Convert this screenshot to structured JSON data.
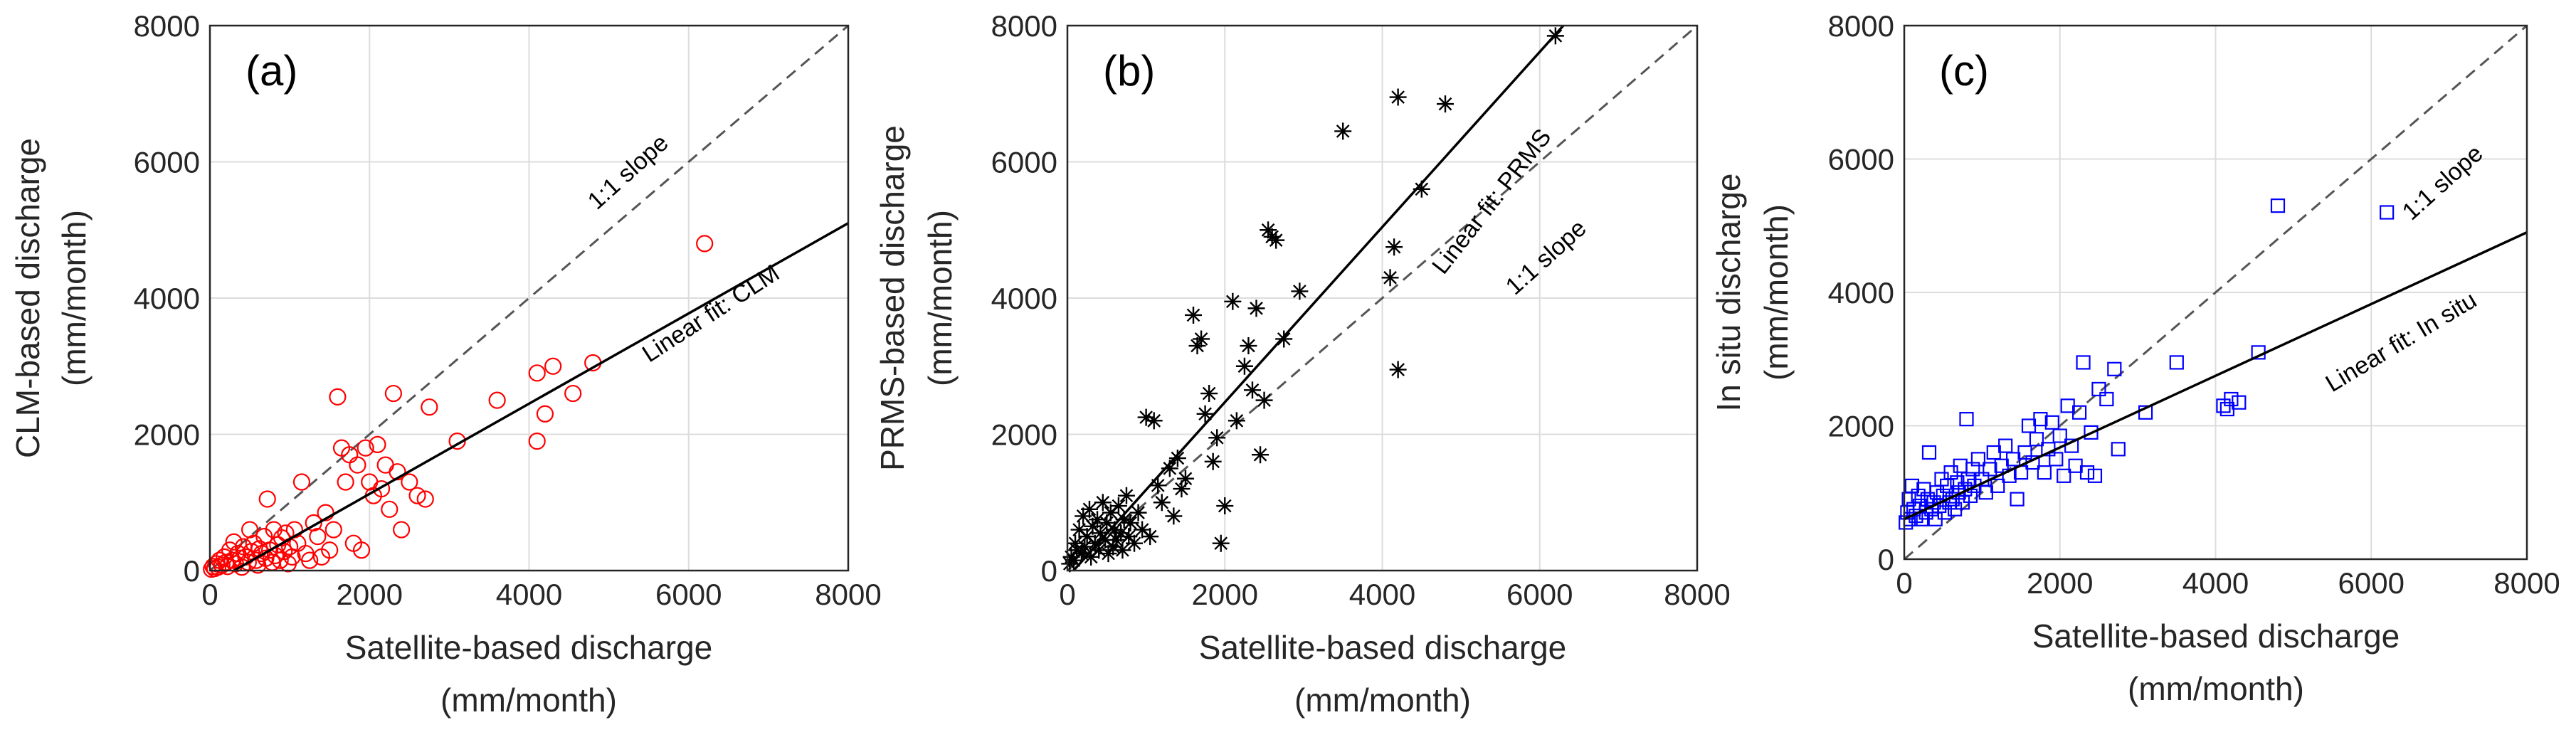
{
  "chart_data": [
    {
      "type": "scatter",
      "panel": "(a)",
      "xlabel": [
        "Satellite-based discharge",
        "(mm/month)"
      ],
      "ylabel": [
        "CLM-based discharge",
        "(mm/month)"
      ],
      "xlim": [
        0,
        8000
      ],
      "ylim": [
        0,
        8000
      ],
      "xticks": [
        "0",
        "2000",
        "4000",
        "6000",
        "8000"
      ],
      "yticks": [
        "0",
        "2000",
        "4000",
        "6000",
        "8000"
      ],
      "grid": true,
      "marker": "circle",
      "color": "#ff0000",
      "fit_label": "Linear fit: CLM",
      "one_to_one_label": "1:1 slope",
      "fit": {
        "x": [
          0,
          8000
        ],
        "y": [
          -200,
          5100
        ]
      },
      "points": [
        [
          20,
          20
        ],
        [
          40,
          60
        ],
        [
          60,
          30
        ],
        [
          80,
          100
        ],
        [
          100,
          50
        ],
        [
          120,
          150
        ],
        [
          150,
          80
        ],
        [
          180,
          200
        ],
        [
          200,
          120
        ],
        [
          220,
          60
        ],
        [
          250,
          300
        ],
        [
          280,
          150
        ],
        [
          300,
          420
        ],
        [
          320,
          100
        ],
        [
          350,
          250
        ],
        [
          380,
          180
        ],
        [
          400,
          50
        ],
        [
          420,
          350
        ],
        [
          450,
          200
        ],
        [
          480,
          120
        ],
        [
          500,
          600
        ],
        [
          520,
          280
        ],
        [
          550,
          400
        ],
        [
          580,
          150
        ],
        [
          600,
          80
        ],
        [
          620,
          320
        ],
        [
          650,
          250
        ],
        [
          680,
          500
        ],
        [
          700,
          180
        ],
        [
          720,
          1050
        ],
        [
          750,
          300
        ],
        [
          780,
          120
        ],
        [
          800,
          600
        ],
        [
          820,
          220
        ],
        [
          850,
          380
        ],
        [
          880,
          150
        ],
        [
          900,
          480
        ],
        [
          930,
          280
        ],
        [
          950,
          550
        ],
        [
          980,
          100
        ],
        [
          1000,
          350
        ],
        [
          1030,
          200
        ],
        [
          1060,
          600
        ],
        [
          1100,
          400
        ],
        [
          1150,
          1300
        ],
        [
          1200,
          250
        ],
        [
          1250,
          150
        ],
        [
          1300,
          700
        ],
        [
          1350,
          500
        ],
        [
          1400,
          200
        ],
        [
          1450,
          850
        ],
        [
          1500,
          300
        ],
        [
          1550,
          600
        ],
        [
          1600,
          2550
        ],
        [
          1650,
          1800
        ],
        [
          1700,
          1300
        ],
        [
          1750,
          1700
        ],
        [
          1800,
          400
        ],
        [
          1850,
          1550
        ],
        [
          1900,
          300
        ],
        [
          1950,
          1800
        ],
        [
          2000,
          1300
        ],
        [
          2050,
          1100
        ],
        [
          2100,
          1850
        ],
        [
          2150,
          1200
        ],
        [
          2200,
          1550
        ],
        [
          2250,
          900
        ],
        [
          2300,
          2600
        ],
        [
          2350,
          1450
        ],
        [
          2400,
          600
        ],
        [
          2500,
          1300
        ],
        [
          2600,
          1100
        ],
        [
          2700,
          1050
        ],
        [
          2750,
          2400
        ],
        [
          3100,
          1900
        ],
        [
          3600,
          2500
        ],
        [
          4100,
          2900
        ],
        [
          4100,
          1900
        ],
        [
          4200,
          2300
        ],
        [
          4300,
          3000
        ],
        [
          4550,
          2600
        ],
        [
          4800,
          3050
        ],
        [
          6200,
          4800
        ]
      ]
    },
    {
      "type": "scatter",
      "panel": "(b)",
      "xlabel": [
        "Satellite-based discharge",
        "(mm/month)"
      ],
      "ylabel": [
        "PRMS-based discharge",
        "(mm/month)"
      ],
      "xlim": [
        0,
        8000
      ],
      "ylim": [
        0,
        8000
      ],
      "xticks": [
        "0",
        "2000",
        "4000",
        "6000",
        "8000"
      ],
      "yticks": [
        "0",
        "2000",
        "4000",
        "6000",
        "8000"
      ],
      "grid": true,
      "marker": "asterisk",
      "color": "#000000",
      "fit_label": "Linear fit: PRMS",
      "one_to_one_label": "1:1 slope",
      "fit": {
        "x": [
          0,
          6300
        ],
        "y": [
          -100,
          8000
        ]
      },
      "points": [
        [
          30,
          100
        ],
        [
          50,
          200
        ],
        [
          80,
          150
        ],
        [
          100,
          400
        ],
        [
          120,
          300
        ],
        [
          150,
          600
        ],
        [
          180,
          250
        ],
        [
          200,
          800
        ],
        [
          220,
          350
        ],
        [
          250,
          500
        ],
        [
          280,
          900
        ],
        [
          300,
          200
        ],
        [
          320,
          650
        ],
        [
          350,
          400
        ],
        [
          380,
          750
        ],
        [
          400,
          300
        ],
        [
          420,
          550
        ],
        [
          450,
          1000
        ],
        [
          480,
          450
        ],
        [
          500,
          700
        ],
        [
          520,
          250
        ],
        [
          550,
          850
        ],
        [
          580,
          350
        ],
        [
          600,
          600
        ],
        [
          620,
          450
        ],
        [
          650,
          950
        ],
        [
          680,
          550
        ],
        [
          700,
          300
        ],
        [
          720,
          750
        ],
        [
          750,
          1100
        ],
        [
          780,
          500
        ],
        [
          800,
          700
        ],
        [
          850,
          400
        ],
        [
          900,
          850
        ],
        [
          950,
          600
        ],
        [
          1000,
          2250
        ],
        [
          1050,
          500
        ],
        [
          1100,
          2200
        ],
        [
          1150,
          1250
        ],
        [
          1200,
          1000
        ],
        [
          1300,
          1500
        ],
        [
          1350,
          800
        ],
        [
          1400,
          1650
        ],
        [
          1450,
          1200
        ],
        [
          1500,
          1350
        ],
        [
          1600,
          3750
        ],
        [
          1650,
          3300
        ],
        [
          1700,
          3400
        ],
        [
          1750,
          2300
        ],
        [
          1800,
          2600
        ],
        [
          1850,
          1600
        ],
        [
          1900,
          1950
        ],
        [
          1950,
          400
        ],
        [
          2000,
          950
        ],
        [
          2100,
          3950
        ],
        [
          2150,
          2200
        ],
        [
          2250,
          3000
        ],
        [
          2300,
          3300
        ],
        [
          2350,
          2650
        ],
        [
          2400,
          3850
        ],
        [
          2450,
          1700
        ],
        [
          2500,
          2500
        ],
        [
          2550,
          5000
        ],
        [
          2600,
          4900
        ],
        [
          2650,
          4850
        ],
        [
          2750,
          3400
        ],
        [
          2950,
          4100
        ],
        [
          3500,
          6450
        ],
        [
          4200,
          6950
        ],
        [
          4100,
          4300
        ],
        [
          4150,
          4750
        ],
        [
          4200,
          2950
        ],
        [
          4500,
          5600
        ],
        [
          4800,
          6850
        ],
        [
          6200,
          7850
        ]
      ]
    },
    {
      "type": "scatter",
      "panel": "(c)",
      "xlabel": [
        "Satellite-based discharge",
        "(mm/month)"
      ],
      "ylabel": [
        "In situ discharge",
        "(mm/month)"
      ],
      "xlim": [
        0,
        8000
      ],
      "ylim": [
        0,
        8000
      ],
      "xticks": [
        "0",
        "2000",
        "4000",
        "6000",
        "8000"
      ],
      "yticks": [
        "0",
        "2000",
        "4000",
        "6000",
        "8000"
      ],
      "grid": true,
      "marker": "square",
      "color": "#0000ff",
      "fit_label": "Linear fit: In situ",
      "one_to_one_label": "1:1 slope",
      "fit": {
        "x": [
          0,
          8000
        ],
        "y": [
          600,
          4900
        ]
      },
      "points": [
        [
          20,
          550
        ],
        [
          40,
          700
        ],
        [
          60,
          900
        ],
        [
          80,
          600
        ],
        [
          100,
          1100
        ],
        [
          120,
          750
        ],
        [
          150,
          650
        ],
        [
          180,
          950
        ],
        [
          200,
          800
        ],
        [
          220,
          600
        ],
        [
          250,
          1050
        ],
        [
          280,
          700
        ],
        [
          300,
          900
        ],
        [
          320,
          1600
        ],
        [
          350,
          750
        ],
        [
          380,
          850
        ],
        [
          400,
          600
        ],
        [
          420,
          1000
        ],
        [
          450,
          800
        ],
        [
          480,
          1200
        ],
        [
          500,
          950
        ],
        [
          520,
          700
        ],
        [
          550,
          1100
        ],
        [
          580,
          850
        ],
        [
          600,
          1300
        ],
        [
          620,
          900
        ],
        [
          650,
          750
        ],
        [
          680,
          1150
        ],
        [
          700,
          1000
        ],
        [
          720,
          1400
        ],
        [
          750,
          850
        ],
        [
          780,
          1050
        ],
        [
          800,
          2100
        ],
        [
          820,
          1200
        ],
        [
          850,
          950
        ],
        [
          880,
          1350
        ],
        [
          900,
          1100
        ],
        [
          950,
          1500
        ],
        [
          1000,
          1200
        ],
        [
          1050,
          1000
        ],
        [
          1100,
          1350
        ],
        [
          1150,
          1600
        ],
        [
          1200,
          1100
        ],
        [
          1250,
          1400
        ],
        [
          1300,
          1700
        ],
        [
          1350,
          1250
        ],
        [
          1400,
          1500
        ],
        [
          1450,
          900
        ],
        [
          1500,
          1300
        ],
        [
          1550,
          1600
        ],
        [
          1600,
          2000
        ],
        [
          1650,
          1450
        ],
        [
          1700,
          1800
        ],
        [
          1750,
          2100
        ],
        [
          1800,
          1300
        ],
        [
          1850,
          1650
        ],
        [
          1900,
          2050
        ],
        [
          1950,
          1500
        ],
        [
          2000,
          1850
        ],
        [
          2050,
          1250
        ],
        [
          2100,
          2300
        ],
        [
          2150,
          1700
        ],
        [
          2200,
          1400
        ],
        [
          2250,
          2200
        ],
        [
          2300,
          2950
        ],
        [
          2350,
          1300
        ],
        [
          2400,
          1900
        ],
        [
          2450,
          1250
        ],
        [
          2500,
          2550
        ],
        [
          2600,
          2400
        ],
        [
          2700,
          2850
        ],
        [
          2750,
          1650
        ],
        [
          3100,
          2200
        ],
        [
          3500,
          2950
        ],
        [
          4100,
          2300
        ],
        [
          4150,
          2250
        ],
        [
          4200,
          2400
        ],
        [
          4300,
          2350
        ],
        [
          4550,
          3100
        ],
        [
          4800,
          5300
        ],
        [
          6200,
          5200
        ]
      ]
    }
  ]
}
